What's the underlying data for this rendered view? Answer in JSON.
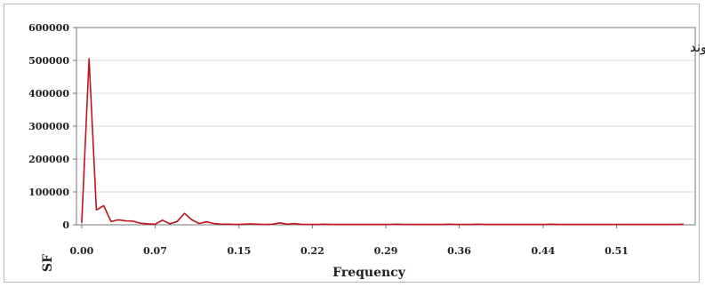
{
  "chart_data": {
    "type": "line",
    "title": "",
    "annotation": "قلاع قیسوند",
    "xlabel": "Frequency",
    "ylabel": "SF",
    "xlim": [
      -0.005,
      0.585
    ],
    "ylim": [
      0,
      600000
    ],
    "x_ticks": [
      "0.00",
      "0.07",
      "0.15",
      "0.22",
      "0.29",
      "0.36",
      "0.44",
      "0.51"
    ],
    "y_ticks": [
      "0",
      "100000",
      "200000",
      "300000",
      "400000",
      "500000",
      "600000"
    ],
    "grid": "horizontal",
    "line_color": "#c0141c",
    "series": [
      {
        "x": [
          0.0,
          0.007,
          0.014,
          0.021,
          0.028,
          0.035,
          0.042,
          0.049,
          0.056,
          0.063,
          0.07,
          0.077,
          0.084,
          0.091,
          0.098,
          0.105,
          0.112,
          0.119,
          0.126,
          0.133,
          0.14,
          0.147,
          0.154,
          0.161,
          0.168,
          0.175,
          0.182,
          0.189,
          0.196,
          0.203,
          0.21,
          0.217,
          0.224,
          0.231,
          0.238,
          0.245,
          0.252,
          0.259,
          0.266,
          0.273,
          0.28,
          0.287,
          0.294,
          0.301,
          0.308,
          0.315,
          0.322,
          0.329,
          0.336,
          0.343,
          0.35,
          0.357,
          0.364,
          0.371,
          0.378,
          0.385,
          0.392,
          0.399,
          0.406,
          0.413,
          0.42,
          0.427,
          0.434,
          0.441,
          0.448,
          0.455,
          0.462,
          0.469,
          0.476,
          0.483,
          0.49,
          0.497,
          0.504,
          0.511,
          0.518,
          0.525,
          0.532,
          0.539,
          0.546,
          0.553,
          0.56,
          0.567,
          0.574
        ],
        "y": [
          5000,
          505000,
          45000,
          58000,
          10000,
          15000,
          12000,
          11000,
          5000,
          3000,
          2000,
          14000,
          3000,
          10000,
          35000,
          15000,
          4000,
          9000,
          4000,
          2000,
          2000,
          1000,
          2000,
          3000,
          2000,
          1000,
          2000,
          6000,
          2000,
          4000,
          1000,
          1000,
          1000,
          2000,
          1000,
          1000,
          1000,
          1000,
          1000,
          1000,
          1000,
          1000,
          1000,
          2000,
          1000,
          1000,
          1000,
          1000,
          1000,
          1000,
          2000,
          1000,
          1000,
          1000,
          2000,
          1000,
          1000,
          1000,
          1000,
          1000,
          1000,
          1000,
          1000,
          1000,
          2000,
          1000,
          1000,
          1000,
          1000,
          1000,
          1000,
          1000,
          1000,
          1000,
          1000,
          1000,
          1000,
          1000,
          1000,
          1000,
          1000,
          1000,
          2000
        ]
      }
    ]
  }
}
